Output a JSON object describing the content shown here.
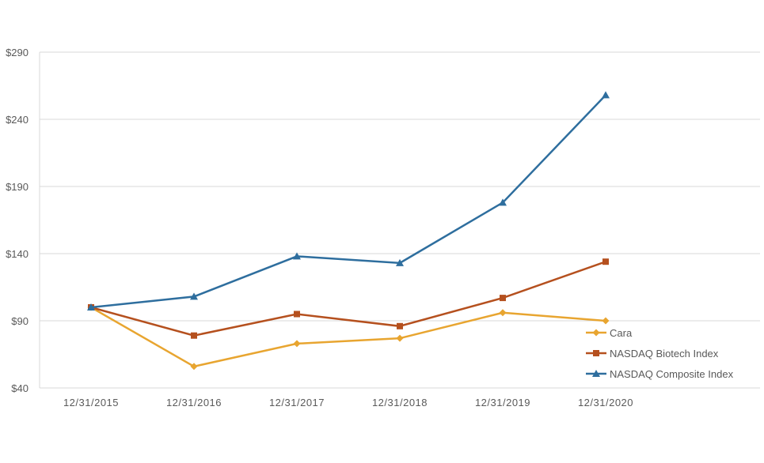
{
  "chart_data": {
    "type": "line",
    "title": "",
    "xlabel": "",
    "ylabel": "",
    "categories": [
      "12/31/2015",
      "12/31/2016",
      "12/31/2017",
      "12/31/2018",
      "12/31/2019",
      "12/31/2020"
    ],
    "ylim": [
      40,
      290
    ],
    "yticks": [
      40,
      90,
      140,
      190,
      240,
      290
    ],
    "ytick_labels": [
      "$40",
      "$90",
      "$140",
      "$190",
      "$240",
      "$290"
    ],
    "grid": true,
    "legend_position": "right",
    "series": [
      {
        "name": "Cara",
        "marker": "diamond",
        "color": "#E8A530",
        "values": [
          100,
          56,
          73,
          77,
          96,
          90
        ]
      },
      {
        "name": "NASDAQ Biotech Index",
        "marker": "square",
        "color": "#B5501E",
        "values": [
          100,
          79,
          95,
          86,
          107,
          134
        ]
      },
      {
        "name": "NASDAQ Composite Index",
        "marker": "triangle",
        "color": "#2E6E9E",
        "values": [
          100,
          108,
          138,
          133,
          178,
          258
        ]
      }
    ]
  }
}
